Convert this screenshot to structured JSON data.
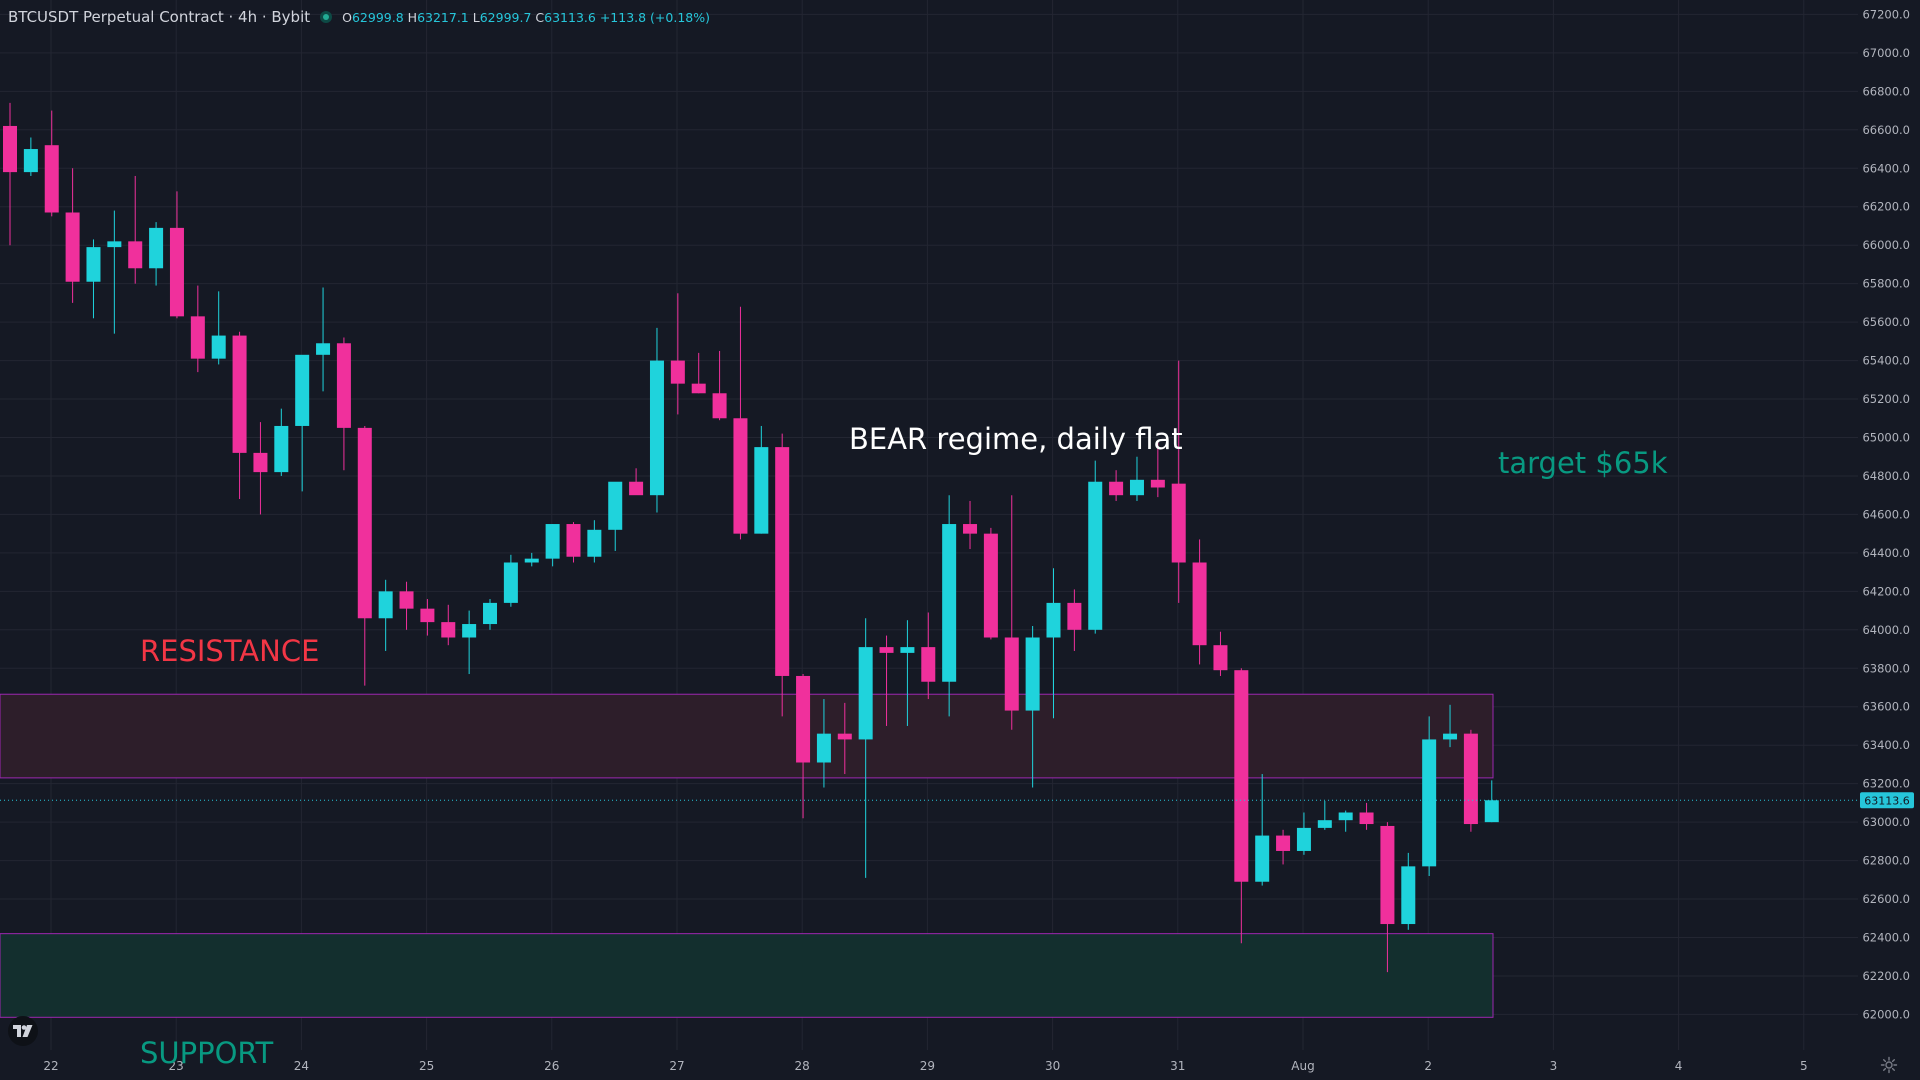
{
  "header": {
    "symbol": "BTCUSDT Perpetual Contract · 4h · Bybit",
    "open_label": "O",
    "open": "62999.8",
    "high_label": "H",
    "high": "63217.1",
    "low_label": "L",
    "low": "62999.7",
    "close_label": "C",
    "close": "63113.6",
    "change": "+113.8 (+0.18%)"
  },
  "colors": {
    "background": "#151924",
    "bull": "#1fd3dc",
    "bear": "#f0309c",
    "resistance_zone": "#2d1e2a",
    "support_zone": "#132f2e",
    "zone_border": "#9c27b0",
    "price_line": "#26c6da",
    "resistance_text": "#f23645",
    "support_text": "#089981",
    "target_text": "#089981"
  },
  "icons": {
    "logo": "tradingview-logo-icon",
    "settings": "gear-icon"
  },
  "chart_data": {
    "type": "candlestick",
    "x_ticks": [
      "22",
      "23",
      "24",
      "25",
      "26",
      "27",
      "28",
      "29",
      "30",
      "31",
      "Aug",
      "2",
      "3",
      "4",
      "5"
    ],
    "y_ticks": [
      "67200.0",
      "67000.0",
      "66800.0",
      "66600.0",
      "66400.0",
      "66200.0",
      "66000.0",
      "65800.0",
      "65600.0",
      "65400.0",
      "65200.0",
      "65000.0",
      "64800.0",
      "64600.0",
      "64400.0",
      "64200.0",
      "64000.0",
      "63800.0",
      "63600.0",
      "63400.0",
      "63200.0",
      "63000.0",
      "62800.0",
      "62600.0",
      "62400.0",
      "62200.0",
      "62000.0"
    ],
    "ylim": [
      61815,
      67275
    ],
    "last_price_label": "63113.6",
    "last_price": 63113.6,
    "candles": [
      {
        "o": 66620,
        "h": 66740,
        "l": 66000,
        "c": 66380
      },
      {
        "o": 66380,
        "h": 66560,
        "l": 66360,
        "c": 66500
      },
      {
        "o": 66520,
        "h": 66700,
        "l": 66150,
        "c": 66170
      },
      {
        "o": 66170,
        "h": 66400,
        "l": 65700,
        "c": 65810
      },
      {
        "o": 65810,
        "h": 66030,
        "l": 65620,
        "c": 65990
      },
      {
        "o": 65990,
        "h": 66180,
        "l": 65540,
        "c": 66020
      },
      {
        "o": 66020,
        "h": 66360,
        "l": 65800,
        "c": 65880
      },
      {
        "o": 65880,
        "h": 66120,
        "l": 65790,
        "c": 66090
      },
      {
        "o": 66090,
        "h": 66280,
        "l": 65620,
        "c": 65630
      },
      {
        "o": 65630,
        "h": 65790,
        "l": 65340,
        "c": 65410
      },
      {
        "o": 65410,
        "h": 65760,
        "l": 65380,
        "c": 65530
      },
      {
        "o": 65530,
        "h": 65550,
        "l": 64680,
        "c": 64920
      },
      {
        "o": 64920,
        "h": 65080,
        "l": 64600,
        "c": 64820
      },
      {
        "o": 64820,
        "h": 65150,
        "l": 64800,
        "c": 65060
      },
      {
        "o": 65060,
        "h": 65410,
        "l": 64720,
        "c": 65430
      },
      {
        "o": 65430,
        "h": 65780,
        "l": 65240,
        "c": 65490
      },
      {
        "o": 65490,
        "h": 65520,
        "l": 64830,
        "c": 65050
      },
      {
        "o": 65050,
        "h": 65060,
        "l": 63710,
        "c": 64060
      },
      {
        "o": 64060,
        "h": 64260,
        "l": 63890,
        "c": 64200
      },
      {
        "o": 64200,
        "h": 64250,
        "l": 64000,
        "c": 64110
      },
      {
        "o": 64110,
        "h": 64160,
        "l": 63970,
        "c": 64040
      },
      {
        "o": 64040,
        "h": 64130,
        "l": 63920,
        "c": 63960
      },
      {
        "o": 63960,
        "h": 64100,
        "l": 63770,
        "c": 64030
      },
      {
        "o": 64030,
        "h": 64160,
        "l": 64000,
        "c": 64140
      },
      {
        "o": 64140,
        "h": 64390,
        "l": 64120,
        "c": 64350
      },
      {
        "o": 64350,
        "h": 64400,
        "l": 64330,
        "c": 64370
      },
      {
        "o": 64370,
        "h": 64550,
        "l": 64330,
        "c": 64550
      },
      {
        "o": 64550,
        "h": 64560,
        "l": 64350,
        "c": 64380
      },
      {
        "o": 64380,
        "h": 64570,
        "l": 64350,
        "c": 64520
      },
      {
        "o": 64520,
        "h": 64740,
        "l": 64410,
        "c": 64770
      },
      {
        "o": 64770,
        "h": 64840,
        "l": 64710,
        "c": 64700
      },
      {
        "o": 64700,
        "h": 65570,
        "l": 64610,
        "c": 65400
      },
      {
        "o": 65400,
        "h": 65750,
        "l": 65120,
        "c": 65280
      },
      {
        "o": 65280,
        "h": 65440,
        "l": 65230,
        "c": 65230
      },
      {
        "o": 65230,
        "h": 65450,
        "l": 65090,
        "c": 65100
      },
      {
        "o": 65100,
        "h": 65680,
        "l": 64470,
        "c": 64500
      },
      {
        "o": 64500,
        "h": 65060,
        "l": 64500,
        "c": 64950
      },
      {
        "o": 64950,
        "h": 65020,
        "l": 63550,
        "c": 63760
      },
      {
        "o": 63760,
        "h": 63770,
        "l": 63020,
        "c": 63310
      },
      {
        "o": 63310,
        "h": 63640,
        "l": 63180,
        "c": 63460
      },
      {
        "o": 63460,
        "h": 63620,
        "l": 63250,
        "c": 63430
      },
      {
        "o": 63430,
        "h": 64060,
        "l": 62710,
        "c": 63910
      },
      {
        "o": 63910,
        "h": 63970,
        "l": 63500,
        "c": 63880
      },
      {
        "o": 63880,
        "h": 64050,
        "l": 63500,
        "c": 63910
      },
      {
        "o": 63910,
        "h": 64090,
        "l": 63640,
        "c": 63730
      },
      {
        "o": 63730,
        "h": 64700,
        "l": 63550,
        "c": 64550
      },
      {
        "o": 64550,
        "h": 64670,
        "l": 64420,
        "c": 64500
      },
      {
        "o": 64500,
        "h": 64530,
        "l": 63950,
        "c": 63960
      },
      {
        "o": 63960,
        "h": 64700,
        "l": 63480,
        "c": 63580
      },
      {
        "o": 63580,
        "h": 64020,
        "l": 63180,
        "c": 63960
      },
      {
        "o": 63960,
        "h": 64320,
        "l": 63540,
        "c": 64140
      },
      {
        "o": 64140,
        "h": 64210,
        "l": 63890,
        "c": 64000
      },
      {
        "o": 64000,
        "h": 64880,
        "l": 63980,
        "c": 64770
      },
      {
        "o": 64770,
        "h": 64830,
        "l": 64670,
        "c": 64700
      },
      {
        "o": 64700,
        "h": 64900,
        "l": 64670,
        "c": 64780
      },
      {
        "o": 64780,
        "h": 64980,
        "l": 64690,
        "c": 64740
      },
      {
        "o": 64760,
        "h": 65400,
        "l": 64140,
        "c": 64350
      },
      {
        "o": 64350,
        "h": 64470,
        "l": 63820,
        "c": 63920
      },
      {
        "o": 63920,
        "h": 63990,
        "l": 63760,
        "c": 63790
      },
      {
        "o": 63790,
        "h": 63800,
        "l": 62370,
        "c": 62690
      },
      {
        "o": 62690,
        "h": 63250,
        "l": 62670,
        "c": 62930
      },
      {
        "o": 62930,
        "h": 62960,
        "l": 62780,
        "c": 62850
      },
      {
        "o": 62850,
        "h": 63050,
        "l": 62830,
        "c": 62970
      },
      {
        "o": 62970,
        "h": 63110,
        "l": 62960,
        "c": 63010
      },
      {
        "o": 63010,
        "h": 63060,
        "l": 62950,
        "c": 63050
      },
      {
        "o": 63050,
        "h": 63100,
        "l": 62960,
        "c": 62990
      },
      {
        "o": 62980,
        "h": 63000,
        "l": 62220,
        "c": 62470
      },
      {
        "o": 62470,
        "h": 62840,
        "l": 62440,
        "c": 62770
      },
      {
        "o": 62770,
        "h": 63550,
        "l": 62720,
        "c": 63430
      },
      {
        "o": 63430,
        "h": 63610,
        "l": 63390,
        "c": 63460
      },
      {
        "o": 63460,
        "h": 63480,
        "l": 62950,
        "c": 62990
      },
      {
        "o": 62999.8,
        "h": 63217.1,
        "l": 62999.7,
        "c": 63113.6
      }
    ],
    "zones": [
      {
        "name": "resistance",
        "top": 63665,
        "bottom": 63230
      },
      {
        "name": "support",
        "top": 62420,
        "bottom": 61985
      }
    ],
    "annotations": {
      "resistance_label": "RESISTANCE",
      "support_label": "SUPPORT",
      "regime_label": "BEAR regime, daily flat",
      "target_label": "target $65k"
    }
  }
}
